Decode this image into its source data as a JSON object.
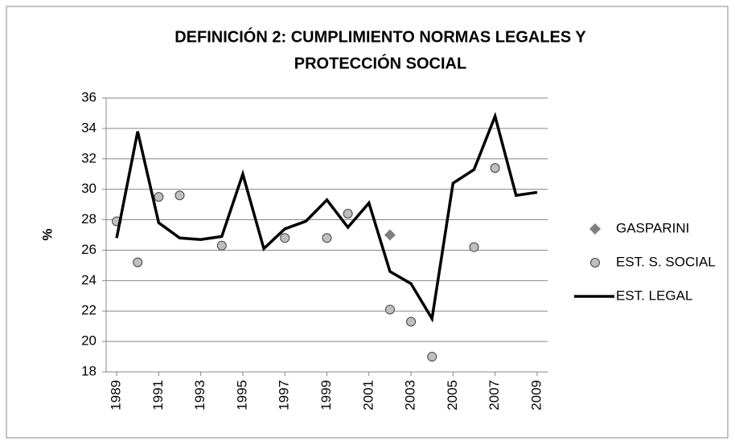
{
  "chart_data": {
    "type": "line",
    "title": [
      "DEFINICIÓN 2: CUMPLIMIENTO NORMAS LEGALES Y",
      "PROTECCIÓN SOCIAL"
    ],
    "y_label": "%",
    "x": [
      1989,
      1990,
      1991,
      1992,
      1993,
      1994,
      1995,
      1996,
      1997,
      1998,
      1999,
      2000,
      2001,
      2002,
      2003,
      2004,
      2005,
      2006,
      2007,
      2008,
      2009
    ],
    "xlim": [
      1988.5,
      2009.5
    ],
    "xticks": [
      1989,
      1991,
      1993,
      1995,
      1997,
      1999,
      2001,
      2003,
      2005,
      2007,
      2009
    ],
    "ylim": [
      18,
      36
    ],
    "yticks": [
      18,
      20,
      22,
      24,
      26,
      28,
      30,
      32,
      34,
      36
    ],
    "grid": true,
    "legend": "right",
    "series": [
      {
        "name": "GASPARINI",
        "color": "#7f7f7f",
        "marker": "diamond",
        "values": [
          null,
          null,
          null,
          null,
          null,
          null,
          null,
          null,
          null,
          null,
          null,
          null,
          null,
          27.0,
          null,
          null,
          null,
          null,
          null,
          null,
          null
        ]
      },
      {
        "name": "EST. S. SOCIAL",
        "color": "#bfbfbf",
        "marker": "circle",
        "values": [
          27.9,
          25.2,
          29.5,
          29.6,
          null,
          26.3,
          null,
          null,
          26.8,
          null,
          26.8,
          28.4,
          null,
          22.1,
          21.3,
          19.0,
          null,
          26.2,
          31.4,
          null,
          null
        ]
      },
      {
        "name": "EST. LEGAL",
        "color": "#000000",
        "marker": "line",
        "values": [
          26.8,
          33.8,
          27.8,
          26.8,
          26.7,
          26.9,
          31.0,
          26.1,
          27.4,
          27.9,
          29.3,
          27.5,
          29.1,
          24.6,
          23.8,
          21.5,
          30.4,
          31.3,
          34.8,
          29.6,
          29.8
        ]
      }
    ]
  }
}
